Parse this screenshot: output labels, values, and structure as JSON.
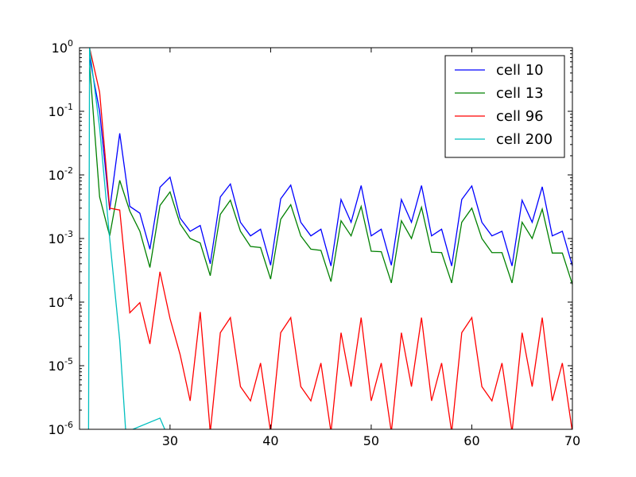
{
  "chart_data": {
    "type": "line",
    "title": "",
    "xlabel": "",
    "ylabel": "",
    "xlim": [
      21,
      70
    ],
    "ylim": [
      1e-06,
      1
    ],
    "yscale": "log",
    "grid": false,
    "legend_position": "top-right",
    "x_ticks": [
      30,
      40,
      50,
      60,
      70
    ],
    "y_ticks": [
      {
        "base": "10",
        "exp": "-6",
        "value": 1e-06
      },
      {
        "base": "10",
        "exp": "-5",
        "value": 1e-05
      },
      {
        "base": "10",
        "exp": "-4",
        "value": 0.0001
      },
      {
        "base": "10",
        "exp": "-3",
        "value": 0.001
      },
      {
        "base": "10",
        "exp": "-2",
        "value": 0.01
      },
      {
        "base": "10",
        "exp": "-1",
        "value": 0.1
      },
      {
        "base": "10",
        "exp": "0",
        "value": 1
      }
    ],
    "series": [
      {
        "name": "cell 10",
        "color": "#0000ff",
        "x": [
          22,
          23,
          24,
          25,
          26,
          27,
          28,
          29,
          30,
          31,
          32,
          33,
          34,
          35,
          36,
          37,
          38,
          39,
          40,
          41,
          42,
          43,
          44,
          45,
          46,
          47,
          48,
          49,
          50,
          51,
          52,
          53,
          54,
          55,
          56,
          57,
          58,
          59,
          60,
          61,
          62,
          63,
          64,
          65,
          66,
          67,
          68,
          69,
          70
        ],
        "y": [
          0.7,
          0.1,
          0.0028,
          0.045,
          0.0032,
          0.0025,
          0.00068,
          0.0064,
          0.0092,
          0.0021,
          0.0013,
          0.0016,
          0.0004,
          0.0045,
          0.0072,
          0.0018,
          0.0011,
          0.0014,
          0.00038,
          0.0042,
          0.0069,
          0.0018,
          0.0011,
          0.0014,
          0.00037,
          0.0041,
          0.0018,
          0.0068,
          0.0011,
          0.0014,
          0.00038,
          0.0041,
          0.0018,
          0.0068,
          0.0011,
          0.0014,
          0.00037,
          0.0041,
          0.0067,
          0.0018,
          0.0011,
          0.0013,
          0.00037,
          0.004,
          0.0018,
          0.0065,
          0.0011,
          0.0013,
          0.00037
        ]
      },
      {
        "name": "cell 13",
        "color": "#008000",
        "x": [
          22,
          23,
          24,
          25,
          26,
          27,
          28,
          29,
          30,
          31,
          32,
          33,
          34,
          35,
          36,
          37,
          38,
          39,
          40,
          41,
          42,
          43,
          44,
          45,
          46,
          47,
          48,
          49,
          50,
          51,
          52,
          53,
          54,
          55,
          56,
          57,
          58,
          59,
          60,
          61,
          62,
          63,
          64,
          65,
          66,
          67,
          68,
          69,
          70
        ],
        "y": [
          0.55,
          0.0045,
          0.0011,
          0.0082,
          0.0027,
          0.0013,
          0.00035,
          0.0033,
          0.0054,
          0.0017,
          0.001,
          0.00085,
          0.00026,
          0.0024,
          0.004,
          0.0013,
          0.00075,
          0.00072,
          0.00023,
          0.002,
          0.0034,
          0.0011,
          0.00068,
          0.00065,
          0.00021,
          0.0019,
          0.0011,
          0.0032,
          0.00063,
          0.00062,
          0.0002,
          0.0019,
          0.001,
          0.0031,
          0.00061,
          0.0006,
          0.0002,
          0.0018,
          0.003,
          0.001,
          0.0006,
          0.0006,
          0.0002,
          0.0018,
          0.001,
          0.0029,
          0.00059,
          0.00059,
          0.00019
        ]
      },
      {
        "name": "cell 96",
        "color": "#ff0000",
        "x": [
          22,
          23,
          24,
          25,
          26,
          27,
          28,
          29,
          30,
          31,
          32,
          33,
          34,
          35,
          36,
          37,
          38,
          39,
          40,
          41,
          42,
          43,
          44,
          45,
          46,
          47,
          48,
          49,
          50,
          51,
          52,
          53,
          54,
          55,
          56,
          57,
          58,
          59,
          60,
          61,
          62,
          63,
          64,
          65,
          66,
          67,
          68,
          69,
          70
        ],
        "y": [
          1,
          0.2,
          0.003,
          0.0028,
          6.8e-05,
          9.8e-05,
          2.2e-05,
          0.0003,
          5.5e-05,
          1.5e-05,
          2.8e-06,
          7e-05,
          9e-07,
          3.3e-05,
          5.7e-05,
          4.7e-06,
          2.8e-06,
          1.1e-05,
          9e-07,
          3.3e-05,
          5.7e-05,
          4.7e-06,
          2.8e-06,
          1.1e-05,
          9e-07,
          3.3e-05,
          4.7e-06,
          5.7e-05,
          2.8e-06,
          1.1e-05,
          9e-07,
          3.3e-05,
          4.7e-06,
          5.7e-05,
          2.8e-06,
          1.1e-05,
          9e-07,
          3.3e-05,
          5.7e-05,
          4.7e-06,
          2.8e-06,
          1.1e-05,
          9e-07,
          3.3e-05,
          4.7e-06,
          5.7e-05,
          2.8e-06,
          1.1e-05,
          9e-07
        ]
      },
      {
        "name": "cell 200",
        "color": "#00bfbf",
        "x": [
          21.9,
          22,
          23,
          24,
          25,
          25.6,
          29,
          29.6
        ],
        "y": [
          9e-07,
          1,
          0.055,
          0.001,
          2.5e-05,
          9e-07,
          1.5e-06,
          9e-07
        ]
      }
    ]
  }
}
